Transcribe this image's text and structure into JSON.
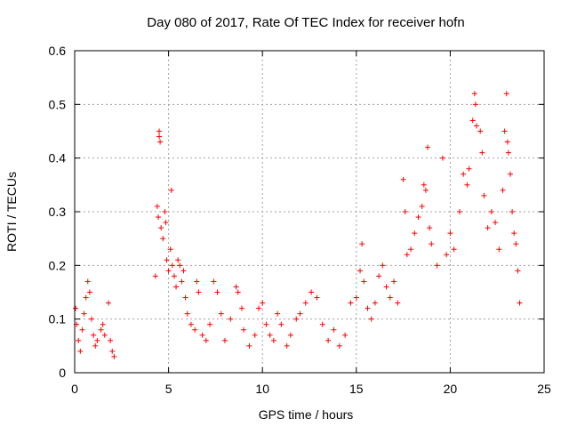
{
  "chart_data": {
    "type": "scatter",
    "title": "Day 080 of 2017, Rate Of TEC Index for receiver hofn",
    "xlabel": "GPS time / hours",
    "ylabel": "ROTI / TECUs",
    "xlim": [
      0,
      25
    ],
    "ylim": [
      0,
      0.6
    ],
    "xticks": [
      0,
      5,
      10,
      15,
      20,
      25
    ],
    "yticks": [
      0,
      0.1,
      0.2,
      0.3,
      0.4,
      0.5,
      0.6
    ],
    "xtick_labels": [
      "0",
      "5",
      "10",
      "15",
      "20",
      "25"
    ],
    "ytick_labels": [
      "0",
      "0.1",
      "0.2",
      "0.3",
      "0.4",
      "0.5",
      "0.6"
    ],
    "grid": true,
    "marker": "+",
    "color": "#ff0000",
    "series": [
      {
        "name": "ROTI",
        "points": [
          [
            0.05,
            0.12
          ],
          [
            0.1,
            0.09
          ],
          [
            0.2,
            0.06
          ],
          [
            0.3,
            0.04
          ],
          [
            0.4,
            0.08
          ],
          [
            0.5,
            0.11
          ],
          [
            0.6,
            0.14
          ],
          [
            0.7,
            0.17
          ],
          [
            0.8,
            0.15
          ],
          [
            0.9,
            0.1
          ],
          [
            1.0,
            0.07
          ],
          [
            1.1,
            0.05
          ],
          [
            1.2,
            0.06
          ],
          [
            1.4,
            0.08
          ],
          [
            1.5,
            0.09
          ],
          [
            1.6,
            0.07
          ],
          [
            1.8,
            0.13
          ],
          [
            1.9,
            0.06
          ],
          [
            2.0,
            0.04
          ],
          [
            2.1,
            0.03
          ],
          [
            4.3,
            0.18
          ],
          [
            4.4,
            0.31
          ],
          [
            4.45,
            0.29
          ],
          [
            4.5,
            0.45
          ],
          [
            4.5,
            0.44
          ],
          [
            4.55,
            0.43
          ],
          [
            4.6,
            0.27
          ],
          [
            4.7,
            0.25
          ],
          [
            4.8,
            0.3
          ],
          [
            4.85,
            0.28
          ],
          [
            4.9,
            0.21
          ],
          [
            5.0,
            0.19
          ],
          [
            5.1,
            0.23
          ],
          [
            5.15,
            0.34
          ],
          [
            5.2,
            0.2
          ],
          [
            5.3,
            0.18
          ],
          [
            5.4,
            0.16
          ],
          [
            5.5,
            0.21
          ],
          [
            5.6,
            0.2
          ],
          [
            5.7,
            0.17
          ],
          [
            5.8,
            0.19
          ],
          [
            5.9,
            0.14
          ],
          [
            6.0,
            0.11
          ],
          [
            6.2,
            0.09
          ],
          [
            6.4,
            0.08
          ],
          [
            6.5,
            0.17
          ],
          [
            6.6,
            0.15
          ],
          [
            6.8,
            0.07
          ],
          [
            7.0,
            0.06
          ],
          [
            7.2,
            0.09
          ],
          [
            7.4,
            0.17
          ],
          [
            7.6,
            0.15
          ],
          [
            7.8,
            0.11
          ],
          [
            8.0,
            0.06
          ],
          [
            8.3,
            0.1
          ],
          [
            8.6,
            0.16
          ],
          [
            8.7,
            0.15
          ],
          [
            8.9,
            0.12
          ],
          [
            9.0,
            0.08
          ],
          [
            9.3,
            0.05
          ],
          [
            9.6,
            0.07
          ],
          [
            9.8,
            0.12
          ],
          [
            10.0,
            0.13
          ],
          [
            10.2,
            0.09
          ],
          [
            10.4,
            0.07
          ],
          [
            10.6,
            0.06
          ],
          [
            10.8,
            0.11
          ],
          [
            11.0,
            0.09
          ],
          [
            11.3,
            0.05
          ],
          [
            11.5,
            0.07
          ],
          [
            11.8,
            0.1
          ],
          [
            12.0,
            0.11
          ],
          [
            12.3,
            0.13
          ],
          [
            12.6,
            0.15
          ],
          [
            12.9,
            0.14
          ],
          [
            13.2,
            0.09
          ],
          [
            13.5,
            0.06
          ],
          [
            13.8,
            0.08
          ],
          [
            14.1,
            0.05
          ],
          [
            14.4,
            0.07
          ],
          [
            14.7,
            0.13
          ],
          [
            15.0,
            0.14
          ],
          [
            15.2,
            0.19
          ],
          [
            15.3,
            0.24
          ],
          [
            15.4,
            0.17
          ],
          [
            15.6,
            0.12
          ],
          [
            15.8,
            0.1
          ],
          [
            16.0,
            0.13
          ],
          [
            16.2,
            0.18
          ],
          [
            16.4,
            0.2
          ],
          [
            16.6,
            0.16
          ],
          [
            16.8,
            0.14
          ],
          [
            17.0,
            0.17
          ],
          [
            17.2,
            0.13
          ],
          [
            17.5,
            0.36
          ],
          [
            17.6,
            0.3
          ],
          [
            17.7,
            0.22
          ],
          [
            17.9,
            0.23
          ],
          [
            18.1,
            0.26
          ],
          [
            18.3,
            0.29
          ],
          [
            18.5,
            0.31
          ],
          [
            18.6,
            0.35
          ],
          [
            18.7,
            0.34
          ],
          [
            18.8,
            0.42
          ],
          [
            18.9,
            0.27
          ],
          [
            19.0,
            0.24
          ],
          [
            19.3,
            0.2
          ],
          [
            19.6,
            0.4
          ],
          [
            19.8,
            0.22
          ],
          [
            20.0,
            0.26
          ],
          [
            20.2,
            0.23
          ],
          [
            20.5,
            0.3
          ],
          [
            20.7,
            0.37
          ],
          [
            20.9,
            0.35
          ],
          [
            21.0,
            0.38
          ],
          [
            21.2,
            0.47
          ],
          [
            21.3,
            0.52
          ],
          [
            21.35,
            0.5
          ],
          [
            21.4,
            0.46
          ],
          [
            21.6,
            0.45
          ],
          [
            21.7,
            0.41
          ],
          [
            21.8,
            0.33
          ],
          [
            22.0,
            0.27
          ],
          [
            22.2,
            0.3
          ],
          [
            22.4,
            0.28
          ],
          [
            22.6,
            0.23
          ],
          [
            22.8,
            0.34
          ],
          [
            22.9,
            0.45
          ],
          [
            23.0,
            0.52
          ],
          [
            23.05,
            0.43
          ],
          [
            23.1,
            0.41
          ],
          [
            23.2,
            0.37
          ],
          [
            23.3,
            0.3
          ],
          [
            23.4,
            0.26
          ],
          [
            23.5,
            0.24
          ],
          [
            23.6,
            0.19
          ],
          [
            23.7,
            0.13
          ]
        ]
      }
    ]
  }
}
